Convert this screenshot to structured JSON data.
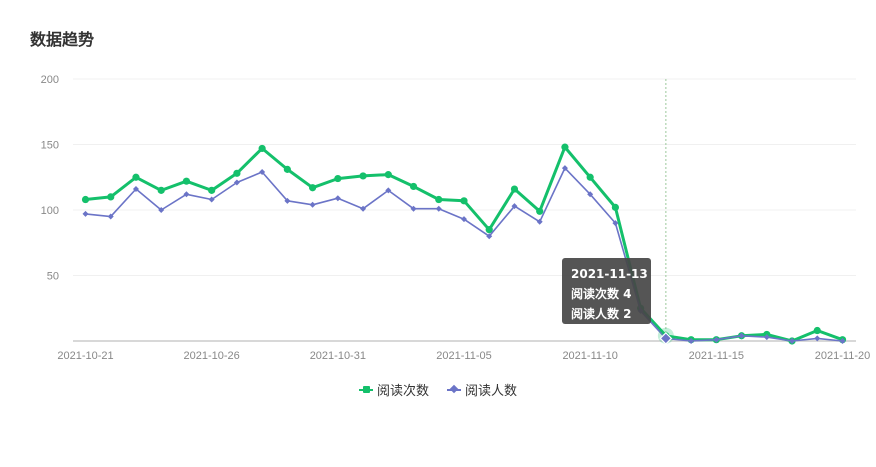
{
  "page": {
    "title": "数据趋势"
  },
  "tooltip": {
    "date": "2021-11-13",
    "line1": "阅读次数 4",
    "line2": "阅读人数 2"
  },
  "legend": {
    "reads": "阅读次数",
    "readers": "阅读人数"
  },
  "colors": {
    "reads": "#14c06b",
    "readers": "#6b74c7",
    "grid": "#f0f0f0",
    "axis": "#cccccc",
    "crosshair": "#9bc99b"
  },
  "chart_data": {
    "type": "line",
    "x": [
      "2021-10-21",
      "2021-10-22",
      "2021-10-23",
      "2021-10-24",
      "2021-10-25",
      "2021-10-26",
      "2021-10-27",
      "2021-10-28",
      "2021-10-29",
      "2021-10-30",
      "2021-10-31",
      "2021-11-01",
      "2021-11-02",
      "2021-11-03",
      "2021-11-04",
      "2021-11-05",
      "2021-11-06",
      "2021-11-07",
      "2021-11-08",
      "2021-11-09",
      "2021-11-10",
      "2021-11-11",
      "2021-11-12",
      "2021-11-13",
      "2021-11-14",
      "2021-11-15",
      "2021-11-16",
      "2021-11-17",
      "2021-11-18",
      "2021-11-19",
      "2021-11-20"
    ],
    "xticks": [
      "2021-10-21",
      "2021-10-26",
      "2021-10-31",
      "2021-11-05",
      "2021-11-10",
      "2021-11-15",
      "2021-11-20"
    ],
    "yticks": [
      50,
      100,
      150,
      200
    ],
    "ylim": [
      0,
      200
    ],
    "highlight_x": "2021-11-13",
    "series": [
      {
        "name": "阅读次数",
        "values": [
          108,
          110,
          125,
          115,
          122,
          115,
          128,
          147,
          131,
          117,
          124,
          126,
          127,
          118,
          108,
          107,
          85,
          116,
          99,
          148,
          125,
          102,
          25,
          4,
          1,
          1,
          4,
          5,
          0,
          8,
          1
        ]
      },
      {
        "name": "阅读人数",
        "values": [
          97,
          95,
          116,
          100,
          112,
          108,
          121,
          129,
          107,
          104,
          109,
          101,
          115,
          101,
          101,
          93,
          80,
          103,
          91,
          132,
          112,
          90,
          23,
          2,
          0,
          1,
          4,
          3,
          0,
          2,
          0
        ]
      }
    ]
  }
}
